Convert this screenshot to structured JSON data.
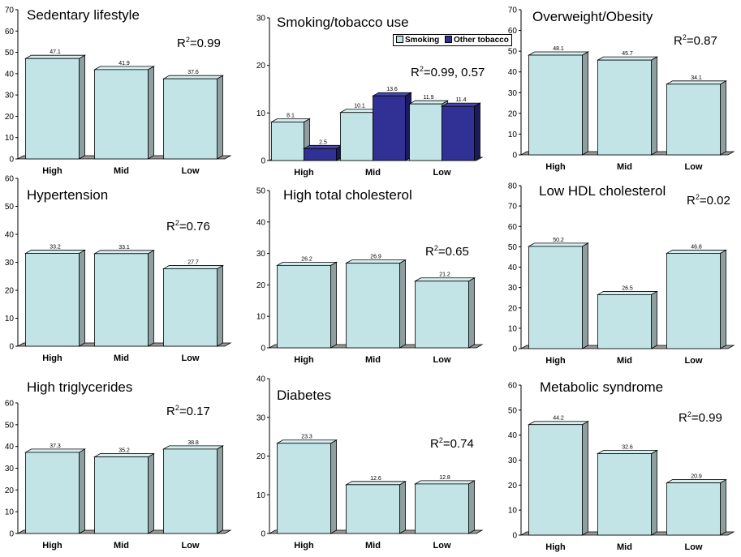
{
  "colors": {
    "bar_face": "#c2e4e6",
    "bar_side": "#8e9fa0",
    "bar_top": "#d6eeef",
    "other_face": "#303095",
    "other_side": "#1a1a5c",
    "other_top": "#4848b0",
    "floor": "#9a9a9a",
    "axis": "#000000"
  },
  "chart_data": [
    {
      "type": "bar",
      "title": "Sedentary lifestyle",
      "r2_prefix": "R",
      "r2_sup": "2",
      "r2_suffix": "=0.99",
      "categories": [
        "High",
        "Mid",
        "Low"
      ],
      "series": [
        {
          "name": "Sedentary lifestyle",
          "values": [
            47.1,
            41.9,
            37.6
          ],
          "labels": [
            "47.1",
            "41.9",
            "37.6"
          ]
        }
      ],
      "ylim": [
        0,
        70
      ],
      "yticks": [
        "0",
        "10",
        "20",
        "30",
        "40",
        "50",
        "60",
        "70"
      ]
    },
    {
      "type": "bar",
      "title": "Smoking/tobacco use",
      "r2_prefix": "R",
      "r2_sup": "2",
      "r2_suffix": "=0.99, 0.57",
      "categories": [
        "High",
        "Mid",
        "Low"
      ],
      "series": [
        {
          "name": "Smoking",
          "values": [
            8.1,
            10.1,
            11.9
          ],
          "labels": [
            "8.1",
            "10.1",
            "11.9"
          ]
        },
        {
          "name": "Other tobacco",
          "values": [
            2.5,
            13.6,
            11.4
          ],
          "labels": [
            "2.5",
            "13.6",
            "11.4"
          ]
        }
      ],
      "legend": [
        "Smoking",
        "Other tobacco"
      ],
      "ylim": [
        0,
        30
      ],
      "yticks": [
        "0",
        "10",
        "20",
        "30"
      ]
    },
    {
      "type": "bar",
      "title": "Overweight/Obesity",
      "r2_prefix": "R",
      "r2_sup": "2",
      "r2_suffix": "=0.87",
      "categories": [
        "High",
        "Mid",
        "Low"
      ],
      "series": [
        {
          "name": "Overweight/Obesity",
          "values": [
            48.1,
            45.7,
            34.1
          ],
          "labels": [
            "48.1",
            "45.7",
            "34.1"
          ]
        }
      ],
      "ylim": [
        0,
        70
      ],
      "yticks": [
        "0",
        "10",
        "20",
        "30",
        "40",
        "50",
        "60",
        "70"
      ]
    },
    {
      "type": "bar",
      "title": "Hypertension",
      "r2_prefix": "R",
      "r2_sup": "2",
      "r2_suffix": "=0.76",
      "categories": [
        "High",
        "Mid",
        "Low"
      ],
      "series": [
        {
          "name": "Hypertension",
          "values": [
            33.2,
            33.1,
            27.7
          ],
          "labels": [
            "33.2",
            "33.1",
            "27.7"
          ]
        }
      ],
      "ylim": [
        0,
        60
      ],
      "yticks": [
        "0",
        "10",
        "20",
        "30",
        "40",
        "50",
        "60"
      ]
    },
    {
      "type": "bar",
      "title": "High total cholesterol",
      "r2_prefix": "R",
      "r2_sup": "2",
      "r2_suffix": "=0.65",
      "categories": [
        "High",
        "Mid",
        "Low"
      ],
      "series": [
        {
          "name": "High total cholesterol",
          "values": [
            26.2,
            26.9,
            21.2
          ],
          "labels": [
            "26.2",
            "26.9",
            "21.2"
          ]
        }
      ],
      "ylim": [
        0,
        50
      ],
      "yticks": [
        "0",
        "10",
        "20",
        "30",
        "40",
        "50"
      ]
    },
    {
      "type": "bar",
      "title": "Low HDL cholesterol",
      "r2_prefix": "R",
      "r2_sup": "2",
      "r2_suffix": "=0.02",
      "categories": [
        "High",
        "Mid",
        "Low"
      ],
      "series": [
        {
          "name": "Low HDL cholesterol",
          "values": [
            50.2,
            26.5,
            46.8
          ],
          "labels": [
            "50.2",
            "26.5",
            "46.8"
          ]
        }
      ],
      "ylim": [
        0,
        80
      ],
      "yticks": [
        "0",
        "10",
        "20",
        "30",
        "40",
        "50",
        "60",
        "70",
        "80"
      ]
    },
    {
      "type": "bar",
      "title": "High triglycerides",
      "r2_prefix": "R",
      "r2_sup": "2",
      "r2_suffix": "=0.17",
      "categories": [
        "High",
        "Mid",
        "Low"
      ],
      "series": [
        {
          "name": "High triglycerides",
          "values": [
            37.3,
            35.2,
            38.8
          ],
          "labels": [
            "37.3",
            "35.2",
            "38.8"
          ]
        }
      ],
      "ylim": [
        0,
        60
      ],
      "yticks": [
        "0",
        "10",
        "20",
        "30",
        "40",
        "50",
        "60"
      ]
    },
    {
      "type": "bar",
      "title": "Diabetes",
      "r2_prefix": "R",
      "r2_sup": "2",
      "r2_suffix": "=0.74",
      "categories": [
        "High",
        "Mid",
        "Low"
      ],
      "series": [
        {
          "name": "Diabetes",
          "values": [
            23.3,
            12.6,
            12.8
          ],
          "labels": [
            "23.3",
            "12.6",
            "12.8"
          ]
        }
      ],
      "ylim": [
        0,
        40
      ],
      "yticks": [
        "0",
        "10",
        "20",
        "30",
        "40"
      ]
    },
    {
      "type": "bar",
      "title": "Metabolic syndrome",
      "r2_prefix": "R",
      "r2_sup": "2",
      "r2_suffix": "=0.99",
      "categories": [
        "High",
        "Mid",
        "Low"
      ],
      "series": [
        {
          "name": "Metabolic syndrome",
          "values": [
            44.2,
            32.6,
            20.9
          ],
          "labels": [
            "44.2",
            "32.6",
            "20.9"
          ]
        }
      ],
      "ylim": [
        0,
        60
      ],
      "yticks": [
        "0",
        "10",
        "20",
        "30",
        "40",
        "50",
        "60"
      ]
    }
  ]
}
